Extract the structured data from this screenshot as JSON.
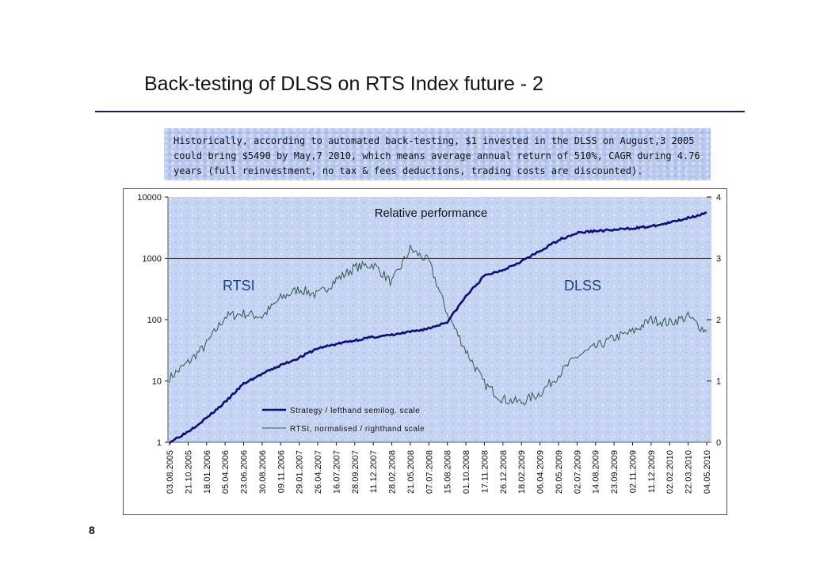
{
  "slide": {
    "title": "Back-testing of DLSS on RTS Index future - 2",
    "note": "Historically, according to automated back-testing, $1 invested in the DLSS on August,3 2005 could bring $5490 by May,7 2010, which means average annual return of 510%, CAGR during 4.76 years (full reinvestment, no tax & fees deductions, trading costs are discounted).",
    "page_number": "8"
  },
  "colors": {
    "strategy": "#0c0c7a",
    "rtsi": "#2e5a4a",
    "note_background": "#b9c9ee",
    "plot_background": "#c5d4f2",
    "rule": "#16165e"
  },
  "chart_data": {
    "type": "line",
    "title": "Relative performance",
    "annotations": [
      "RTSI",
      "DLSS"
    ],
    "y_left": {
      "scale": "log",
      "ticks": [
        "10000",
        "1000",
        "100",
        "10",
        "1"
      ],
      "range": [
        1,
        10000
      ]
    },
    "y_right": {
      "scale": "linear",
      "ticks": [
        "4",
        "3",
        "2",
        "1",
        "0"
      ],
      "range": [
        0,
        4
      ]
    },
    "grid": "single horizontal line at 1000 / 3",
    "legend": {
      "placement": "bottom-center",
      "entries": [
        "Strategy / lefthand semilog. scale",
        "RTSI, normalised / righthand scale"
      ]
    },
    "x_tick_labels": [
      "03.08.2005",
      "21.10.2005",
      "18.01.2006",
      "05.04.2006",
      "23.06.2006",
      "30.08.2006",
      "09.11.2006",
      "29.01.2007",
      "26.04.2007",
      "16.07.2007",
      "28.09.2007",
      "11.12.2007",
      "28.02.2008",
      "21.05.2008",
      "07.07.2008",
      "15.08.2008",
      "01.10.2008",
      "17.11.2008",
      "26.12.2008",
      "18.02.2009",
      "06.04.2009",
      "20.05.2009",
      "02.07.2009",
      "14.08.2009",
      "23.09.2009",
      "02.11.2009",
      "11.12.2009",
      "02.02.2010",
      "22.03.2010",
      "04.05.2010"
    ],
    "series": [
      {
        "name": "Strategy / lefthand semilog. scale",
        "axis": "left",
        "x": [
          "03.08.2005",
          "21.10.2005",
          "18.01.2006",
          "05.04.2006",
          "23.06.2006",
          "30.08.2006",
          "09.11.2006",
          "29.01.2007",
          "26.04.2007",
          "16.07.2007",
          "28.09.2007",
          "11.12.2007",
          "28.02.2008",
          "21.05.2008",
          "07.07.2008",
          "15.08.2008",
          "01.10.2008",
          "17.11.2008",
          "26.12.2008",
          "18.02.2009",
          "06.04.2009",
          "20.05.2009",
          "02.07.2009",
          "14.08.2009",
          "23.09.2009",
          "02.11.2009",
          "11.12.2009",
          "02.02.2010",
          "22.03.2010",
          "04.05.2010"
        ],
        "values": [
          1,
          1.5,
          2.5,
          4.5,
          9,
          13,
          18,
          24,
          34,
          40,
          46,
          52,
          56,
          63,
          72,
          92,
          240,
          520,
          650,
          900,
          1300,
          2000,
          2600,
          2800,
          2900,
          3100,
          3300,
          3800,
          4600,
          5490
        ]
      },
      {
        "name": "RTSI, normalised / righthand scale",
        "axis": "right",
        "x": [
          "03.08.2005",
          "21.10.2005",
          "18.01.2006",
          "05.04.2006",
          "23.06.2006",
          "30.08.2006",
          "09.11.2006",
          "29.01.2007",
          "26.04.2007",
          "16.07.2007",
          "28.09.2007",
          "11.12.2007",
          "28.02.2008",
          "21.05.2008",
          "07.07.2008",
          "15.08.2008",
          "01.10.2008",
          "17.11.2008",
          "26.12.2008",
          "18.02.2009",
          "06.04.2009",
          "20.05.2009",
          "02.07.2009",
          "14.08.2009",
          "23.09.2009",
          "02.11.2009",
          "11.12.2009",
          "02.02.2010",
          "22.03.2010",
          "04.05.2010"
        ],
        "values": [
          1.05,
          1.3,
          1.6,
          2.05,
          2.1,
          2.05,
          2.35,
          2.5,
          2.4,
          2.65,
          2.85,
          2.9,
          2.6,
          3.15,
          2.95,
          2.1,
          1.5,
          0.95,
          0.7,
          0.65,
          0.8,
          1.1,
          1.4,
          1.55,
          1.7,
          1.8,
          2.0,
          1.95,
          2.05,
          1.8
        ]
      }
    ]
  }
}
